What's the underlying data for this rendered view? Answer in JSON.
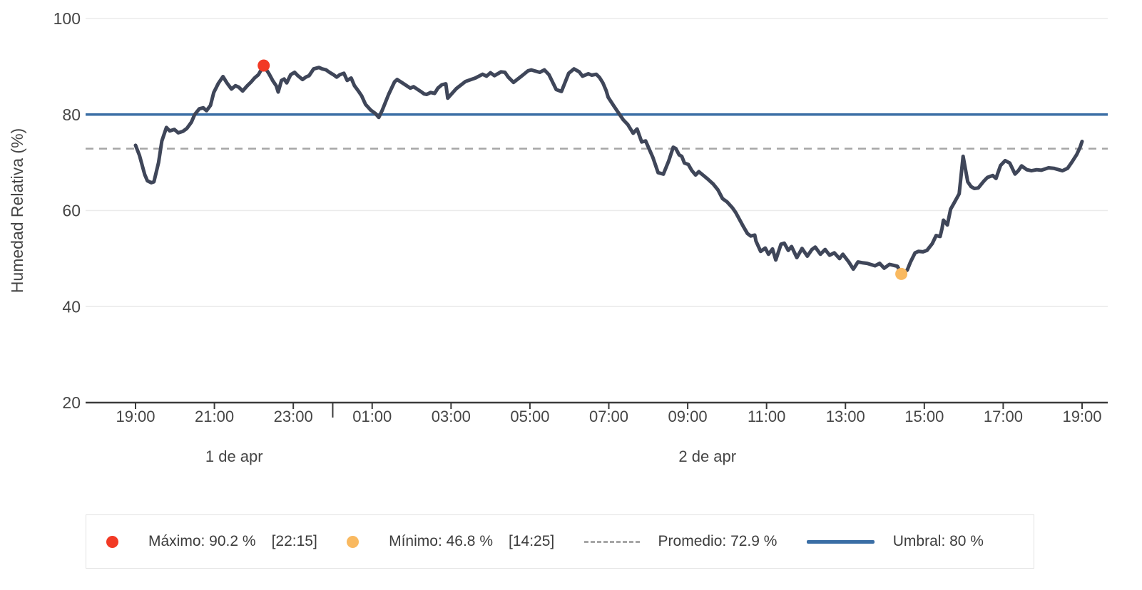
{
  "chart_data": {
    "type": "line",
    "title": "",
    "xlabel": "",
    "ylabel": "Humedad Relativa (%)",
    "ylim": [
      20,
      100
    ],
    "yticks": [
      20,
      40,
      60,
      80,
      100
    ],
    "grid": "horizontal-faint",
    "legend_position": "bottom-boxed",
    "x_axis": {
      "unit": "minutes from 19:00 on 1 de apr",
      "ticks": [
        {
          "t": 0,
          "label": "19:00"
        },
        {
          "t": 120,
          "label": "21:00"
        },
        {
          "t": 240,
          "label": "23:00"
        },
        {
          "t": 360,
          "label": "01:00"
        },
        {
          "t": 480,
          "label": "03:00"
        },
        {
          "t": 600,
          "label": "05:00"
        },
        {
          "t": 720,
          "label": "07:00"
        },
        {
          "t": 840,
          "label": "09:00"
        },
        {
          "t": 960,
          "label": "11:00"
        },
        {
          "t": 1080,
          "label": "13:00"
        },
        {
          "t": 1200,
          "label": "15:00"
        },
        {
          "t": 1320,
          "label": "17:00"
        },
        {
          "t": 1440,
          "label": "19:00"
        }
      ],
      "day_divider_t": 300,
      "day_labels": [
        {
          "label": "1 de apr",
          "from_t": 0,
          "to_t": 300
        },
        {
          "label": "2 de apr",
          "from_t": 300,
          "to_t": 1440
        }
      ]
    },
    "series": [
      {
        "name": "Humedad Relativa",
        "color": "#3f4659",
        "width": 5,
        "points": [
          [
            0,
            73.6
          ],
          [
            6,
            71.5
          ],
          [
            14,
            67.5
          ],
          [
            18,
            66.2
          ],
          [
            24,
            65.8
          ],
          [
            28,
            66.0
          ],
          [
            35,
            70.0
          ],
          [
            40,
            74.5
          ],
          [
            47,
            77.3
          ],
          [
            52,
            76.6
          ],
          [
            59,
            76.9
          ],
          [
            65,
            76.2
          ],
          [
            72,
            76.5
          ],
          [
            78,
            77.1
          ],
          [
            85,
            78.4
          ],
          [
            90,
            80.0
          ],
          [
            97,
            81.2
          ],
          [
            103,
            81.4
          ],
          [
            108,
            80.8
          ],
          [
            114,
            81.9
          ],
          [
            119,
            84.6
          ],
          [
            126,
            86.5
          ],
          [
            133,
            87.9
          ],
          [
            139,
            86.6
          ],
          [
            146,
            85.3
          ],
          [
            152,
            86.0
          ],
          [
            157,
            85.7
          ],
          [
            163,
            84.9
          ],
          [
            170,
            86.0
          ],
          [
            176,
            86.8
          ],
          [
            181,
            87.6
          ],
          [
            187,
            88.3
          ],
          [
            195,
            90.2
          ],
          [
            203,
            88.5
          ],
          [
            209,
            87.0
          ],
          [
            214,
            86.0
          ],
          [
            217,
            84.7
          ],
          [
            222,
            87.1
          ],
          [
            226,
            87.4
          ],
          [
            230,
            86.6
          ],
          [
            236,
            88.3
          ],
          [
            242,
            88.8
          ],
          [
            247,
            88.1
          ],
          [
            254,
            87.3
          ],
          [
            259,
            87.8
          ],
          [
            264,
            88.1
          ],
          [
            271,
            89.5
          ],
          [
            279,
            89.8
          ],
          [
            284,
            89.5
          ],
          [
            290,
            89.3
          ],
          [
            295,
            88.8
          ],
          [
            301,
            88.3
          ],
          [
            306,
            87.8
          ],
          [
            311,
            88.3
          ],
          [
            317,
            88.6
          ],
          [
            322,
            87.1
          ],
          [
            328,
            87.6
          ],
          [
            333,
            86.0
          ],
          [
            339,
            84.9
          ],
          [
            344,
            83.9
          ],
          [
            350,
            82.1
          ],
          [
            358,
            80.9
          ],
          [
            365,
            80.2
          ],
          [
            370,
            79.4
          ],
          [
            375,
            80.8
          ],
          [
            385,
            84.2
          ],
          [
            394,
            86.8
          ],
          [
            398,
            87.3
          ],
          [
            407,
            86.5
          ],
          [
            418,
            85.5
          ],
          [
            423,
            85.8
          ],
          [
            434,
            84.8
          ],
          [
            439,
            84.3
          ],
          [
            443,
            84.2
          ],
          [
            449,
            84.6
          ],
          [
            455,
            84.4
          ],
          [
            460,
            85.5
          ],
          [
            466,
            86.2
          ],
          [
            472,
            86.4
          ],
          [
            475,
            83.4
          ],
          [
            488,
            85.4
          ],
          [
            502,
            86.9
          ],
          [
            517,
            87.6
          ],
          [
            528,
            88.4
          ],
          [
            534,
            88.0
          ],
          [
            540,
            88.7
          ],
          [
            546,
            88.1
          ],
          [
            556,
            88.9
          ],
          [
            562,
            88.8
          ],
          [
            567,
            87.8
          ],
          [
            575,
            86.7
          ],
          [
            589,
            88.2
          ],
          [
            597,
            89.1
          ],
          [
            602,
            89.3
          ],
          [
            615,
            88.8
          ],
          [
            622,
            89.3
          ],
          [
            629,
            88.3
          ],
          [
            640,
            85.2
          ],
          [
            648,
            84.8
          ],
          [
            659,
            88.6
          ],
          [
            667,
            89.5
          ],
          [
            675,
            88.9
          ],
          [
            680,
            88.0
          ],
          [
            689,
            88.5
          ],
          [
            694,
            88.2
          ],
          [
            701,
            88.4
          ],
          [
            706,
            87.7
          ],
          [
            711,
            86.6
          ],
          [
            716,
            85.0
          ],
          [
            719,
            83.6
          ],
          [
            727,
            81.9
          ],
          [
            734,
            80.5
          ],
          [
            742,
            78.9
          ],
          [
            749,
            77.9
          ],
          [
            757,
            76.1
          ],
          [
            763,
            77.0
          ],
          [
            770,
            74.3
          ],
          [
            776,
            74.5
          ],
          [
            787,
            71.1
          ],
          [
            795,
            67.9
          ],
          [
            803,
            67.6
          ],
          [
            811,
            70.3
          ],
          [
            818,
            73.2
          ],
          [
            822,
            72.9
          ],
          [
            827,
            71.6
          ],
          [
            831,
            71.3
          ],
          [
            835,
            69.9
          ],
          [
            841,
            69.6
          ],
          [
            846,
            68.4
          ],
          [
            852,
            67.4
          ],
          [
            857,
            68.1
          ],
          [
            865,
            67.2
          ],
          [
            871,
            66.5
          ],
          [
            879,
            65.5
          ],
          [
            886,
            64.3
          ],
          [
            893,
            62.5
          ],
          [
            900,
            61.8
          ],
          [
            908,
            60.6
          ],
          [
            913,
            59.6
          ],
          [
            919,
            58.1
          ],
          [
            925,
            56.6
          ],
          [
            931,
            55.2
          ],
          [
            936,
            54.7
          ],
          [
            942,
            54.9
          ],
          [
            944,
            53.6
          ],
          [
            951,
            51.5
          ],
          [
            958,
            52.2
          ],
          [
            963,
            50.9
          ],
          [
            969,
            52.0
          ],
          [
            974,
            49.7
          ],
          [
            982,
            53.0
          ],
          [
            987,
            53.2
          ],
          [
            993,
            51.7
          ],
          [
            998,
            52.5
          ],
          [
            1006,
            50.2
          ],
          [
            1014,
            52.1
          ],
          [
            1022,
            50.5
          ],
          [
            1029,
            51.9
          ],
          [
            1034,
            52.4
          ],
          [
            1042,
            50.9
          ],
          [
            1049,
            51.9
          ],
          [
            1056,
            50.7
          ],
          [
            1063,
            51.2
          ],
          [
            1071,
            50.0
          ],
          [
            1076,
            50.9
          ],
          [
            1085,
            49.3
          ],
          [
            1092,
            47.8
          ],
          [
            1099,
            49.3
          ],
          [
            1107,
            49.1
          ],
          [
            1113,
            49.0
          ],
          [
            1125,
            48.5
          ],
          [
            1132,
            49.0
          ],
          [
            1139,
            48.0
          ],
          [
            1147,
            48.8
          ],
          [
            1153,
            48.6
          ],
          [
            1159,
            48.4
          ],
          [
            1165,
            46.8
          ],
          [
            1174,
            47.6
          ],
          [
            1179,
            49.3
          ],
          [
            1186,
            51.2
          ],
          [
            1191,
            51.5
          ],
          [
            1198,
            51.4
          ],
          [
            1204,
            51.7
          ],
          [
            1212,
            53.1
          ],
          [
            1218,
            54.8
          ],
          [
            1224,
            54.6
          ],
          [
            1227,
            56.3
          ],
          [
            1229,
            58.0
          ],
          [
            1235,
            57.0
          ],
          [
            1240,
            60.3
          ],
          [
            1245,
            61.5
          ],
          [
            1253,
            63.5
          ],
          [
            1259,
            71.3
          ],
          [
            1266,
            66.0
          ],
          [
            1271,
            65.0
          ],
          [
            1276,
            64.6
          ],
          [
            1282,
            64.7
          ],
          [
            1291,
            66.2
          ],
          [
            1296,
            66.9
          ],
          [
            1304,
            67.3
          ],
          [
            1309,
            66.7
          ],
          [
            1316,
            69.4
          ],
          [
            1323,
            70.4
          ],
          [
            1330,
            69.9
          ],
          [
            1338,
            67.6
          ],
          [
            1343,
            68.3
          ],
          [
            1348,
            69.3
          ],
          [
            1356,
            68.5
          ],
          [
            1363,
            68.3
          ],
          [
            1371,
            68.5
          ],
          [
            1378,
            68.4
          ],
          [
            1389,
            68.9
          ],
          [
            1397,
            68.8
          ],
          [
            1410,
            68.3
          ],
          [
            1418,
            68.8
          ],
          [
            1424,
            70.0
          ],
          [
            1432,
            71.7
          ],
          [
            1437,
            73.2
          ],
          [
            1440,
            74.4
          ]
        ]
      }
    ],
    "threshold": {
      "value": 80,
      "color": "#3a6ea5",
      "label": "Umbral: 80 %"
    },
    "average": {
      "value": 72.9,
      "color": "#a6a6a6",
      "style": "dashed",
      "label": "Promedio: 72.9 %"
    },
    "max_point": {
      "t": 195,
      "value": 90.2,
      "color": "#f23a25",
      "label": "Máximo: 90.2 %",
      "time_label": "[22:15]"
    },
    "min_point": {
      "t": 1165,
      "value": 46.8,
      "color": "#f9b960",
      "label": "Mínimo: 46.8 %",
      "time_label": "[14:25]"
    }
  },
  "colors": {
    "series_line": "#3f4659",
    "threshold_line": "#3a6ea5",
    "average_line": "#a6a6a6",
    "max_marker": "#f23a25",
    "min_marker": "#f9b960",
    "gridline": "#ebebeb",
    "axis_line": "#3b3b3b",
    "tick_text": "#454545",
    "legend_border": "#e2e2e2"
  }
}
